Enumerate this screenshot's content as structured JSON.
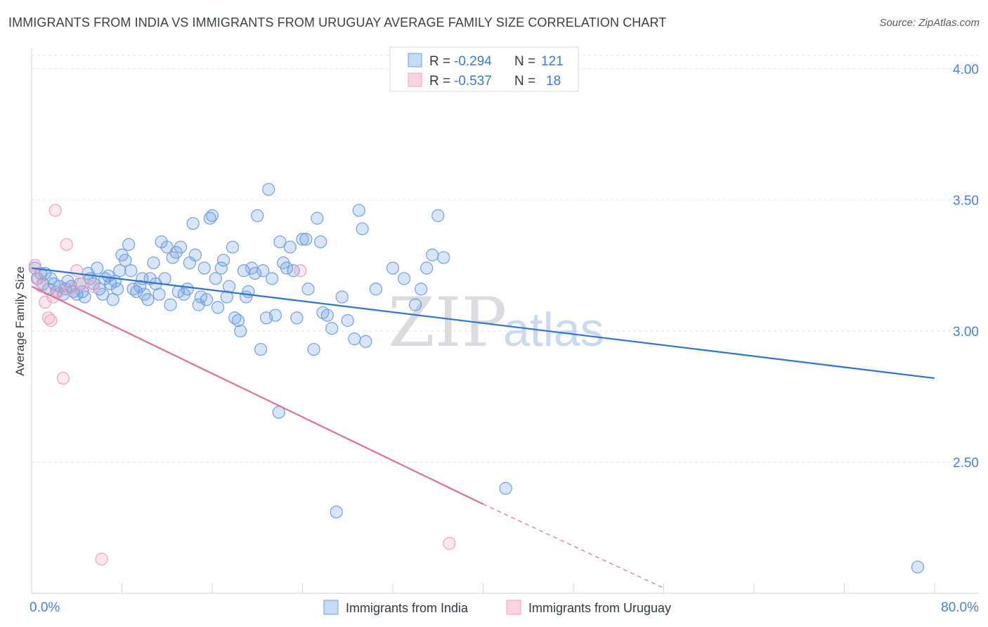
{
  "title": "IMMIGRANTS FROM INDIA VS IMMIGRANTS FROM URUGUAY AVERAGE FAMILY SIZE CORRELATION CHART",
  "source": "Source: ZipAtlas.com",
  "watermark": {
    "zip": "ZIP",
    "atlas": "atlas"
  },
  "colors": {
    "india": "#6fa0e0",
    "india_line": "#2e73d1",
    "uruguay": "#f0a0bc",
    "uruguay_line": "#e0708f",
    "grid": "#dfe3e8",
    "tick_text": "#4a7fd4"
  },
  "legend": {
    "india": {
      "r_label": "R = ",
      "r_value": "-0.294",
      "n_label": "N = ",
      "n_value": "121"
    },
    "uruguay": {
      "r_label": "R = ",
      "r_value": "-0.537",
      "n_label": "N = ",
      "n_value": "18"
    }
  },
  "chart_data": {
    "type": "scatter",
    "ylabel": "Average Family Size",
    "xlabel": "",
    "xlim": [
      0,
      80
    ],
    "ylim": [
      2.0,
      4.08
    ],
    "x_tick_labels": [
      {
        "value": 0,
        "label": "0.0%"
      },
      {
        "value": 80,
        "label": "80.0%"
      }
    ],
    "y_ticks": [
      {
        "value": 2.5,
        "label": "2.50"
      },
      {
        "value": 3.0,
        "label": "3.00"
      },
      {
        "value": 3.5,
        "label": "3.50"
      },
      {
        "value": 4.0,
        "label": "4.00"
      }
    ],
    "grid": "horizontal-dashed",
    "legend_position": "top-center",
    "series": [
      {
        "name": "Immigrants from India",
        "color": "#6fa0e0",
        "trend": {
          "x": [
            0,
            80
          ],
          "y": [
            3.24,
            2.82
          ]
        },
        "points": [
          [
            0.3,
            3.24
          ],
          [
            0.5,
            3.2
          ],
          [
            0.8,
            3.22
          ],
          [
            1.0,
            3.18
          ],
          [
            1.2,
            3.22
          ],
          [
            1.5,
            3.16
          ],
          [
            1.7,
            3.2
          ],
          [
            2.0,
            3.18
          ],
          [
            2.2,
            3.15
          ],
          [
            2.5,
            3.17
          ],
          [
            2.8,
            3.14
          ],
          [
            3.0,
            3.16
          ],
          [
            3.2,
            3.19
          ],
          [
            3.5,
            3.17
          ],
          [
            3.7,
            3.15
          ],
          [
            4.0,
            3.14
          ],
          [
            4.3,
            3.18
          ],
          [
            4.5,
            3.15
          ],
          [
            4.7,
            3.13
          ],
          [
            5.0,
            3.22
          ],
          [
            5.2,
            3.2
          ],
          [
            5.5,
            3.18
          ],
          [
            5.8,
            3.24
          ],
          [
            6.0,
            3.16
          ],
          [
            6.3,
            3.14
          ],
          [
            6.5,
            3.2
          ],
          [
            6.8,
            3.21
          ],
          [
            7.0,
            3.18
          ],
          [
            7.2,
            3.12
          ],
          [
            7.4,
            3.19
          ],
          [
            7.6,
            3.16
          ],
          [
            7.8,
            3.23
          ],
          [
            8.0,
            3.29
          ],
          [
            8.3,
            3.27
          ],
          [
            8.6,
            3.33
          ],
          [
            8.8,
            3.23
          ],
          [
            9.0,
            3.16
          ],
          [
            9.3,
            3.15
          ],
          [
            9.6,
            3.17
          ],
          [
            9.8,
            3.2
          ],
          [
            10.0,
            3.14
          ],
          [
            10.3,
            3.12
          ],
          [
            10.5,
            3.2
          ],
          [
            10.8,
            3.26
          ],
          [
            11.0,
            3.18
          ],
          [
            11.3,
            3.14
          ],
          [
            11.5,
            3.34
          ],
          [
            11.8,
            3.2
          ],
          [
            12.0,
            3.32
          ],
          [
            12.3,
            3.1
          ],
          [
            12.5,
            3.28
          ],
          [
            12.8,
            3.3
          ],
          [
            13.0,
            3.15
          ],
          [
            13.2,
            3.32
          ],
          [
            13.5,
            3.14
          ],
          [
            13.8,
            3.16
          ],
          [
            14.0,
            3.26
          ],
          [
            14.3,
            3.41
          ],
          [
            14.5,
            3.29
          ],
          [
            14.8,
            3.1
          ],
          [
            15.0,
            3.13
          ],
          [
            15.3,
            3.24
          ],
          [
            15.5,
            3.12
          ],
          [
            15.8,
            3.43
          ],
          [
            16.0,
            3.44
          ],
          [
            16.3,
            3.2
          ],
          [
            16.5,
            3.09
          ],
          [
            16.8,
            3.24
          ],
          [
            17.0,
            3.27
          ],
          [
            17.3,
            3.13
          ],
          [
            17.5,
            3.17
          ],
          [
            17.8,
            3.32
          ],
          [
            18.0,
            3.05
          ],
          [
            18.3,
            3.04
          ],
          [
            18.5,
            3.0
          ],
          [
            18.8,
            3.23
          ],
          [
            19.0,
            3.13
          ],
          [
            19.2,
            3.15
          ],
          [
            19.5,
            3.24
          ],
          [
            19.8,
            3.22
          ],
          [
            20.0,
            3.44
          ],
          [
            20.3,
            2.93
          ],
          [
            20.5,
            3.23
          ],
          [
            20.8,
            3.05
          ],
          [
            21.0,
            3.54
          ],
          [
            21.3,
            3.2
          ],
          [
            21.6,
            3.06
          ],
          [
            21.9,
            2.69
          ],
          [
            22.0,
            3.34
          ],
          [
            22.3,
            3.26
          ],
          [
            22.6,
            3.24
          ],
          [
            22.9,
            3.32
          ],
          [
            23.2,
            3.23
          ],
          [
            23.5,
            3.05
          ],
          [
            24.0,
            3.35
          ],
          [
            24.3,
            3.35
          ],
          [
            24.5,
            3.16
          ],
          [
            25.0,
            2.93
          ],
          [
            25.3,
            3.43
          ],
          [
            25.6,
            3.34
          ],
          [
            25.8,
            3.07
          ],
          [
            26.2,
            3.06
          ],
          [
            26.6,
            3.01
          ],
          [
            27.0,
            2.31
          ],
          [
            27.5,
            3.13
          ],
          [
            28.0,
            3.04
          ],
          [
            28.6,
            2.97
          ],
          [
            29.0,
            3.46
          ],
          [
            29.3,
            3.39
          ],
          [
            29.6,
            2.96
          ],
          [
            30.5,
            3.16
          ],
          [
            32.0,
            3.24
          ],
          [
            33.0,
            3.2
          ],
          [
            34.0,
            3.1
          ],
          [
            34.5,
            3.16
          ],
          [
            35.0,
            3.24
          ],
          [
            35.5,
            3.29
          ],
          [
            36.0,
            3.44
          ],
          [
            36.5,
            3.28
          ],
          [
            42.0,
            2.4
          ],
          [
            78.5,
            2.1
          ]
        ]
      },
      {
        "name": "Immigrants from Uruguay",
        "color": "#f0a0bc",
        "trend": {
          "x": [
            0,
            40
          ],
          "y": [
            3.17,
            2.34
          ]
        },
        "trend_dashed": {
          "x": [
            40,
            56
          ],
          "y": [
            2.34,
            2.02
          ]
        },
        "points": [
          [
            0.3,
            3.25
          ],
          [
            0.6,
            3.2
          ],
          [
            0.9,
            3.17
          ],
          [
            1.2,
            3.11
          ],
          [
            1.5,
            3.05
          ],
          [
            1.7,
            3.04
          ],
          [
            1.9,
            3.13
          ],
          [
            2.1,
            3.46
          ],
          [
            2.4,
            3.15
          ],
          [
            2.8,
            2.82
          ],
          [
            3.1,
            3.33
          ],
          [
            3.5,
            3.16
          ],
          [
            4.0,
            3.23
          ],
          [
            4.5,
            3.18
          ],
          [
            5.5,
            3.17
          ],
          [
            6.2,
            2.13
          ],
          [
            23.8,
            3.23
          ],
          [
            37.0,
            2.19
          ]
        ]
      }
    ]
  },
  "bottom_legend": [
    {
      "label": "Immigrants from India",
      "key": "india"
    },
    {
      "label": "Immigrants from Uruguay",
      "key": "uruguay"
    }
  ]
}
